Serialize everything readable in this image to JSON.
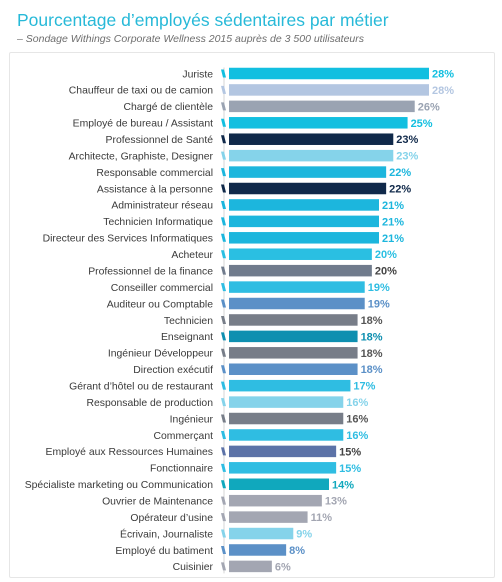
{
  "header": {
    "title": "Pourcentage d’employés sédentaires par métier",
    "subtitle": "– Sondage Withings Corporate Wellness 2015  auprès de 3 500 utilisateurs"
  },
  "chart_data": {
    "type": "bar",
    "orientation": "horizontal",
    "title": "Pourcentage d’employés sédentaires par métier",
    "subtitle": "– Sondage Withings Corporate Wellness 2015  auprès de 3 500 utilisateurs",
    "xlabel": "",
    "ylabel": "",
    "xlim": [
      0,
      28
    ],
    "grid": false,
    "unit": "%",
    "categories": [
      "Juriste",
      "Chauffeur de taxi ou de camion",
      "Chargé de clientèle",
      "Employé de bureau / Assistant",
      "Professionnel de Santé",
      "Architecte, Graphiste, Designer",
      "Responsable commercial",
      "Assistance à la personne",
      "Administrateur réseau",
      "Technicien Informatique",
      "Directeur des Services Informatiques",
      "Acheteur",
      "Professionnel de la finance",
      "Conseiller commercial",
      "Auditeur ou Comptable",
      "Technicien",
      "Enseignant",
      "Ingénieur Développeur",
      "Direction exécutif",
      "Gérant d’hôtel ou de restaurant",
      "Responsable de production",
      "Ingénieur",
      "Commerçant",
      "Employé aux Ressources Humaines",
      "Fonctionnaire",
      "Spécialiste marketing ou Communication",
      "Ouvrier de Maintenance",
      "Opérateur d’usine",
      "Écrivain, Journaliste",
      "Employé du batiment",
      "Cuisinier"
    ],
    "values": [
      28,
      28,
      26,
      25,
      23,
      23,
      22,
      22,
      21,
      21,
      21,
      20,
      20,
      19,
      19,
      18,
      18,
      18,
      18,
      17,
      16,
      16,
      16,
      15,
      15,
      14,
      13,
      11,
      9,
      8,
      6
    ],
    "value_labels": [
      "28%",
      "28%",
      "26%",
      "25%",
      "23%",
      "23%",
      "22%",
      "22%",
      "21%",
      "21%",
      "21%",
      "20%",
      "20%",
      "19%",
      "19%",
      "18%",
      "18%",
      "18%",
      "18%",
      "17%",
      "16%",
      "16%",
      "16%",
      "15%",
      "15%",
      "14%",
      "13%",
      "11%",
      "9%",
      "8%",
      "6%"
    ],
    "colors": [
      "#12bfe0",
      "#b3c6e1",
      "#9aa3b2",
      "#12bfe0",
      "#10294a",
      "#85d3ea",
      "#1cb6dd",
      "#10294a",
      "#1cb6dd",
      "#1cb6dd",
      "#1cb6dd",
      "#2abfe2",
      "#707b8c",
      "#2fbde2",
      "#5b90c7",
      "#777d88",
      "#0e8fb0",
      "#777d88",
      "#5b90c7",
      "#2fbde2",
      "#85d3ea",
      "#777d88",
      "#2fbde2",
      "#5c72a7",
      "#2fbde2",
      "#10a8bd",
      "#a3a6b2",
      "#a3a6b2",
      "#85d3ea",
      "#5b90c7",
      "#a3a6b2"
    ],
    "label_colors": [
      "#12bfe0",
      "#b3c6e1",
      "#9aa3b2",
      "#12bfe0",
      "#10294a",
      "#85d3ea",
      "#1cb6dd",
      "#10294a",
      "#1cb6dd",
      "#1cb6dd",
      "#1cb6dd",
      "#2abfe2",
      "#444444",
      "#2fbde2",
      "#5b90c7",
      "#555555",
      "#0e8fb0",
      "#555555",
      "#5b90c7",
      "#2fbde2",
      "#85d3ea",
      "#555555",
      "#2fbde2",
      "#444444",
      "#2fbde2",
      "#10a8bd",
      "#a3a6b2",
      "#a3a6b2",
      "#85d3ea",
      "#5b90c7",
      "#a3a6b2"
    ]
  }
}
